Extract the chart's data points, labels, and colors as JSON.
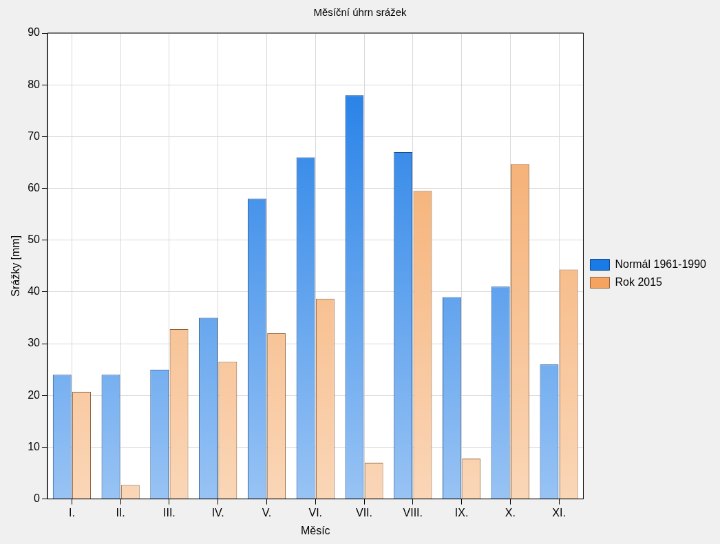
{
  "chart_data": {
    "type": "bar",
    "title": "Měsíční úhrn srážek",
    "xlabel": "Měsíc",
    "ylabel": "Srážky [mm]",
    "categories": [
      "I.",
      "II.",
      "III.",
      "IV.",
      "V.",
      "VI.",
      "VII.",
      "VIII.",
      "IX.",
      "X.",
      "XI."
    ],
    "series": [
      {
        "name": "Normál 1961-1990",
        "color": "#1a7ae6",
        "values": [
          24,
          24,
          25,
          35,
          58,
          66,
          78,
          67,
          39,
          41,
          26
        ]
      },
      {
        "name": "Rok 2015",
        "color": "#f4a460",
        "values": [
          20.7,
          2.7,
          32.8,
          26.5,
          32,
          38.7,
          7,
          59.5,
          7.8,
          64.7,
          44.3
        ]
      }
    ],
    "ylim": [
      0,
      90
    ],
    "yticks": [
      0,
      10,
      20,
      30,
      40,
      50,
      60,
      70,
      80,
      90
    ],
    "grid": true,
    "legend": "right"
  }
}
